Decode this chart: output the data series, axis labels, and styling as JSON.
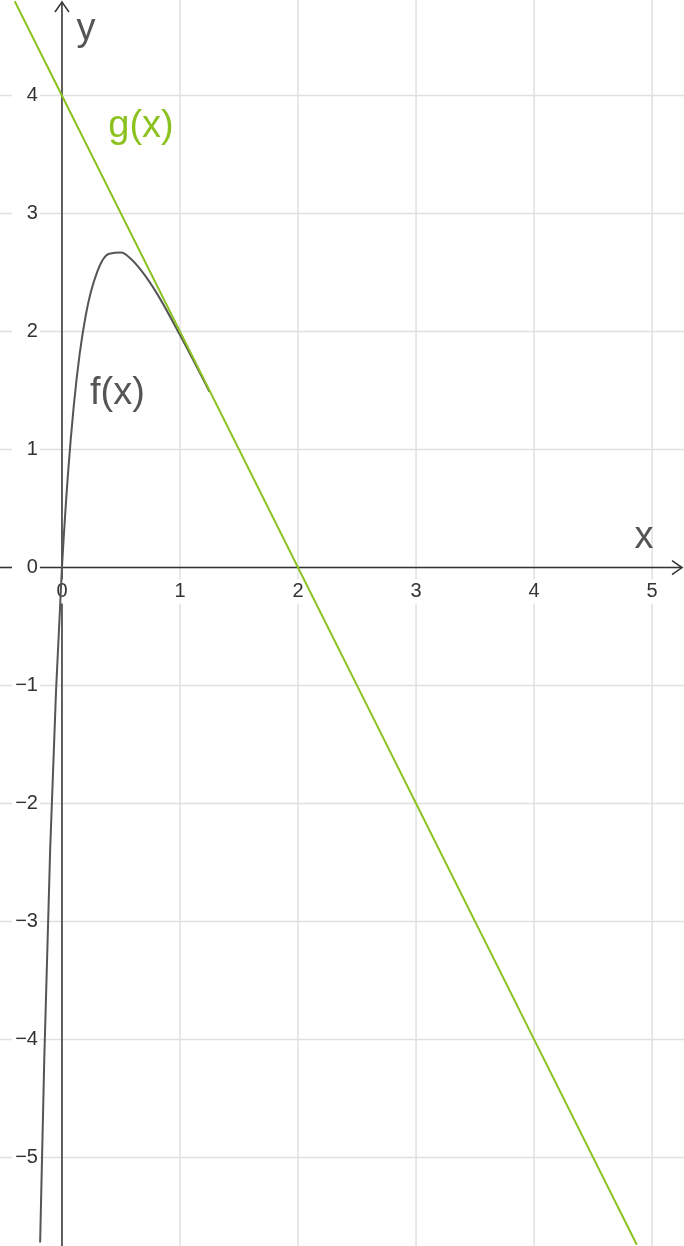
{
  "chart_data": {
    "type": "line",
    "xlabel": "x",
    "ylabel": "y",
    "xlim": [
      -0.525,
      5.27
    ],
    "ylim": [
      -5.75,
      4.81
    ],
    "xticks": [
      0,
      1,
      2,
      3,
      4,
      5
    ],
    "yticks": [
      {
        "value": -5,
        "label": "−5"
      },
      {
        "value": -4,
        "label": "−4"
      },
      {
        "value": -3,
        "label": "−3"
      },
      {
        "value": -2,
        "label": "−2"
      },
      {
        "value": -1,
        "label": "−1"
      },
      0,
      1,
      2,
      3,
      4
    ],
    "grid": true,
    "marker": "none",
    "line_style": "solid",
    "series": [
      {
        "name": "f(x)",
        "color": "#555555",
        "x": [
          -0.185,
          -0.15,
          -0.1,
          -0.05,
          0,
          0.05,
          0.1,
          0.15,
          0.2,
          0.3,
          0.4,
          0.5,
          0.6,
          0.7,
          0.8,
          1,
          1.25
        ],
        "values": [
          -5.72,
          -4.17,
          -2.39,
          -1.04,
          0,
          0.78,
          1.37,
          1.81,
          2.13,
          2.51,
          2.66,
          2.67,
          2.6,
          2.48,
          2.33,
          1.97,
          1.49
        ]
      },
      {
        "name": "g(x)",
        "color": "#8bc220",
        "x": [
          -0.4,
          4.87
        ],
        "values": [
          4.8,
          -5.74
        ]
      }
    ]
  }
}
